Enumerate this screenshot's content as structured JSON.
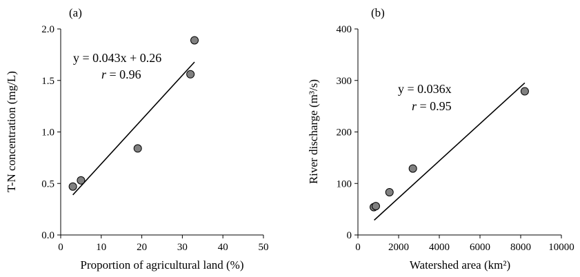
{
  "chart_data": [
    {
      "type": "scatter",
      "panel_label": "(a)",
      "xlabel": "Proportion of agricultural land (%)",
      "ylabel": "T-N concentration (mg/L)",
      "xlim": [
        0,
        50
      ],
      "ylim": [
        0.0,
        2.0
      ],
      "xticks": [
        "0",
        "10",
        "20",
        "30",
        "40",
        "50"
      ],
      "yticks": [
        "0.0",
        "0.5",
        "1.0",
        "1.5",
        "2.0"
      ],
      "grid": false,
      "points": [
        {
          "x": 3,
          "y": 0.47
        },
        {
          "x": 5,
          "y": 0.53
        },
        {
          "x": 19,
          "y": 0.84
        },
        {
          "x": 32,
          "y": 1.56
        },
        {
          "x": 33,
          "y": 1.89
        }
      ],
      "trendline": {
        "x_start": 3,
        "x_end": 33,
        "slope": 0.043,
        "intercept": 0.26
      },
      "equation": "y = 0.043x + 0.26",
      "r_symbol": "r",
      "r_value": " = 0.96"
    },
    {
      "type": "scatter",
      "panel_label": "(b)",
      "xlabel": "Watershed area (km²)",
      "ylabel": "River discharge (m³/s)",
      "xlim": [
        0,
        10000
      ],
      "ylim": [
        0,
        400
      ],
      "xticks": [
        "0",
        "2000",
        "4000",
        "6000",
        "8000",
        "10000"
      ],
      "yticks": [
        "0",
        "100",
        "200",
        "300",
        "400"
      ],
      "grid": false,
      "points": [
        {
          "x": 780,
          "y": 54
        },
        {
          "x": 880,
          "y": 56
        },
        {
          "x": 1550,
          "y": 83
        },
        {
          "x": 2700,
          "y": 129
        },
        {
          "x": 8200,
          "y": 279
        }
      ],
      "trendline": {
        "x_start": 800,
        "x_end": 8200,
        "slope": 0.036,
        "intercept": 0
      },
      "equation": "y = 0.036x",
      "r_symbol": "r",
      "r_value": " = 0.95"
    }
  ]
}
